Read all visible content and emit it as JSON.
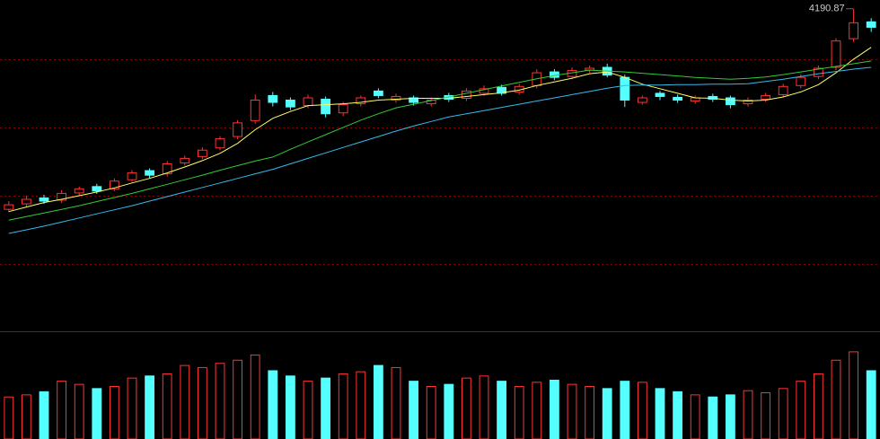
{
  "chart_data": {
    "type": "candlestick",
    "open": [
      3750,
      3762,
      3775,
      3770,
      3786,
      3800,
      3795,
      3815,
      3835,
      3828,
      3852,
      3866,
      3885,
      3910,
      3945,
      4000,
      3990,
      3978,
      3992,
      3962,
      3982,
      4010,
      3990,
      3995,
      3982,
      4000,
      3994,
      4005,
      4018,
      4008,
      4022,
      4052,
      4042,
      4056,
      4062,
      4040,
      3985,
      4005,
      3996,
      3988,
      3998,
      3995,
      3982,
      3992,
      4002,
      4022,
      4042,
      4062,
      4125,
      4162
    ],
    "high": [
      3768,
      3780,
      3782,
      3792,
      3800,
      3806,
      3818,
      3836,
      3840,
      3856,
      3868,
      3886,
      3910,
      3946,
      4002,
      4008,
      3996,
      4002,
      3998,
      3986,
      4000,
      4016,
      4004,
      4000,
      3996,
      4006,
      4016,
      4022,
      4024,
      4026,
      4058,
      4058,
      4062,
      4066,
      4070,
      4046,
      4000,
      4010,
      4002,
      4000,
      4004,
      4000,
      3996,
      4006,
      4026,
      4046,
      4066,
      4126,
      4190.87,
      4170
    ],
    "low": [
      3744,
      3756,
      3762,
      3764,
      3780,
      3784,
      3790,
      3810,
      3818,
      3822,
      3846,
      3860,
      3880,
      3904,
      3938,
      3976,
      3968,
      3972,
      3952,
      3955,
      3976,
      3994,
      3984,
      3978,
      3976,
      3986,
      3988,
      4000,
      4000,
      4002,
      4016,
      4034,
      4036,
      4050,
      4040,
      3975,
      3980,
      3990,
      3984,
      3982,
      3986,
      3972,
      3976,
      3986,
      3996,
      4016,
      4036,
      4056,
      4118,
      4140
    ],
    "close": [
      3760,
      3772,
      3768,
      3785,
      3795,
      3790,
      3812,
      3830,
      3825,
      3850,
      3862,
      3880,
      3905,
      3940,
      3990,
      3985,
      3975,
      3995,
      3960,
      3980,
      3995,
      4000,
      3998,
      3985,
      3990,
      3992,
      4010,
      4015,
      4005,
      4020,
      4050,
      4040,
      4055,
      4060,
      4045,
      3990,
      3995,
      3998,
      3990,
      3995,
      3992,
      3980,
      3990,
      4000,
      4020,
      4040,
      4060,
      4120,
      4160,
      4150
    ],
    "volume": [
      40,
      42,
      45,
      55,
      52,
      48,
      50,
      58,
      60,
      62,
      70,
      68,
      72,
      75,
      80,
      65,
      60,
      55,
      58,
      62,
      64,
      70,
      68,
      55,
      50,
      52,
      58,
      60,
      55,
      50,
      54,
      56,
      52,
      50,
      48,
      55,
      54,
      48,
      45,
      42,
      40,
      42,
      46,
      44,
      48,
      55,
      62,
      75,
      83,
      65
    ],
    "ma_lines": [
      {
        "color": "#ffff66",
        "values": [
          3745,
          3755,
          3765,
          3772,
          3780,
          3788,
          3797,
          3808,
          3818,
          3830,
          3843,
          3857,
          3873,
          3895,
          3925,
          3950,
          3965,
          3978,
          3980,
          3982,
          3985,
          3990,
          3992,
          3994,
          3994,
          3994,
          3998,
          4002,
          4006,
          4012,
          4022,
          4030,
          4038,
          4048,
          4052,
          4040,
          4025,
          4015,
          4005,
          3995,
          3994,
          3990,
          3988,
          3990,
          3997,
          4008,
          4024,
          4050,
          4080,
          4106
        ]
      },
      {
        "color": "#33cc33",
        "values": [
          3726,
          3734,
          3742,
          3750,
          3758,
          3767,
          3776,
          3785,
          3795,
          3805,
          3815,
          3825,
          3836,
          3846,
          3856,
          3865,
          3882,
          3898,
          3914,
          3930,
          3946,
          3960,
          3973,
          3981,
          3989,
          3997,
          4005,
          4013,
          4021,
          4029,
          4037,
          4044,
          4050,
          4056,
          4054,
          4052,
          4049,
          4046,
          4043,
          4040,
          4038,
          4036,
          4038,
          4041,
          4046,
          4052,
          4058,
          4064,
          4070,
          4076
        ]
      },
      {
        "color": "#33bbee",
        "values": [
          3697,
          3705,
          3713,
          3722,
          3731,
          3740,
          3749,
          3758,
          3768,
          3778,
          3788,
          3798,
          3808,
          3818,
          3828,
          3838,
          3850,
          3862,
          3874,
          3886,
          3898,
          3910,
          3922,
          3933,
          3943,
          3953,
          3960,
          3967,
          3974,
          3981,
          3988,
          3995,
          4002,
          4009,
          4016,
          4022,
          4023,
          4023,
          4024,
          4024,
          4025,
          4025,
          4026,
          4031,
          4036,
          4042,
          4048,
          4053,
          4058,
          4062
        ]
      }
    ],
    "up_color": "#ff3333",
    "down_color": "#54ffff",
    "ylim": [
      3482,
      4210
    ],
    "ygrid": [
      3630,
      3780,
      3930,
      4080
    ],
    "grid": true,
    "vlim": [
      0,
      100
    ],
    "annotations": [
      {
        "label": "4190.87",
        "x": 48,
        "value": 4190.87
      }
    ]
  }
}
